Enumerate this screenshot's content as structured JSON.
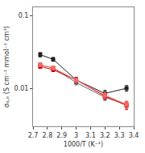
{
  "chart_data": {
    "type": "line",
    "xlabel": "1000/T (K⁻¹)",
    "ylabel": "σₒ,ₑ (S cm⁻¹ mmol⁻¹ cm³)",
    "x": [
      2.75,
      2.84,
      3.0,
      3.2,
      3.35
    ],
    "series": [
      {
        "color": "#222222",
        "values": [
          0.029,
          0.025,
          0.013,
          0.0085,
          0.01
        ],
        "yerr": [
          0.002,
          0.0015,
          0.0012,
          0.0009,
          0.0009
        ]
      },
      {
        "color": "#666666",
        "values": [
          0.021,
          0.019,
          0.012,
          0.0075,
          0.006
        ],
        "yerr": [
          0.0012,
          0.001,
          0.0009,
          0.0007,
          0.0006
        ]
      },
      {
        "color": "#cc0000",
        "values": [
          0.02,
          0.018,
          0.013,
          0.0078,
          0.0058
        ],
        "yerr": [
          0.0012,
          0.001,
          0.0009,
          0.0008,
          0.0007
        ]
      },
      {
        "color": "#ff6666",
        "values": [
          0.021,
          0.019,
          0.013,
          0.008,
          0.006
        ],
        "yerr": [
          0.001,
          0.0009,
          0.0008,
          0.0007,
          0.0006
        ]
      }
    ],
    "marker": "square",
    "line_style": "solid",
    "log": "y",
    "xlim": [
      2.7,
      3.4
    ],
    "xticks": [
      2.7,
      2.8,
      2.9,
      3.0,
      3.1,
      3.2,
      3.3,
      3.4
    ],
    "ylim": [
      0.003,
      0.13
    ],
    "yticks": [
      0.01,
      0.1
    ],
    "grid": false
  }
}
